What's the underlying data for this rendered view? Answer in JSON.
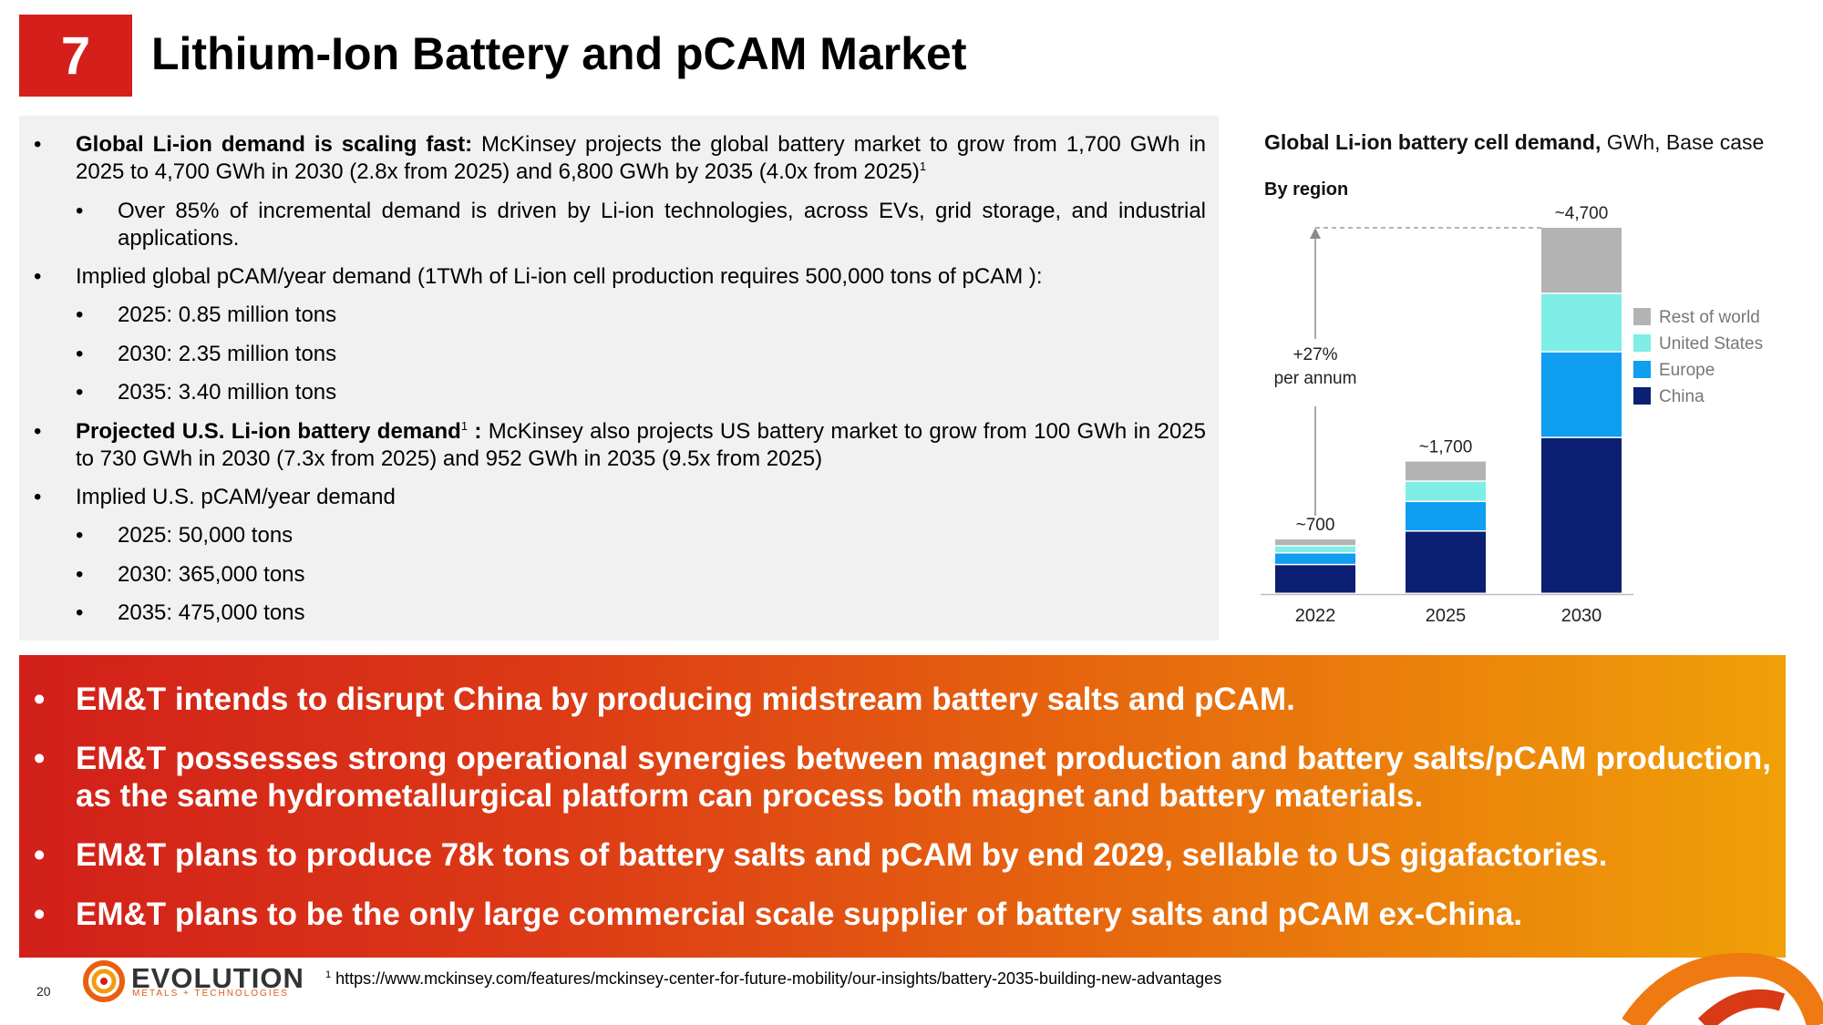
{
  "slide": {
    "number": "7",
    "title": "Lithium-Ion Battery and pCAM Market",
    "page_number": "20"
  },
  "bullets": [
    {
      "lead": "Global Li-ion demand is scaling fast:",
      "text": " McKinsey projects the global battery market to grow from 1,700 GWh in 2025 to 4,700 GWh in 2030 (2.8x from 2025) and 6,800 GWh by 2035 (4.0x from 2025)",
      "sup": "1"
    },
    {
      "text": "Over 85% of incremental demand is driven by Li-ion technologies, across EVs, grid storage, and industrial applications."
    },
    {
      "text": "Implied global pCAM/year demand (1TWh of Li-ion cell production requires 500,000 tons of pCAM ):"
    },
    {
      "text": "2025: 0.85 million tons"
    },
    {
      "text": "2030: 2.35 million tons"
    },
    {
      "text": "2035: 3.40 million tons"
    },
    {
      "lead": "Projected U.S. Li-ion battery demand",
      "sup": "1",
      "lead2": " :",
      "text": " McKinsey also projects US battery market to grow from 100 GWh in 2025 to 730 GWh in 2030 (7.3x from 2025) and 952 GWh in 2035 (9.5x from 2025)"
    },
    {
      "text": "Implied U.S. pCAM/year demand"
    },
    {
      "text": "2025: 50,000 tons"
    },
    {
      "text": "2030: 365,000 tons"
    },
    {
      "text": "2035: 475,000 tons"
    }
  ],
  "chart_data": {
    "type": "bar",
    "stacked": true,
    "title": "Global Li-ion battery cell demand,",
    "title_suffix": " GWh, Base case",
    "subtitle": "By region",
    "categories": [
      "2022",
      "2025",
      "2030"
    ],
    "totals_labels": [
      "~700",
      "~1,700",
      "~4,700"
    ],
    "totals": [
      700,
      1700,
      4700
    ],
    "series": [
      {
        "name": "China",
        "color": "#0b1f73",
        "values": [
          370,
          800,
          2000
        ]
      },
      {
        "name": "Europe",
        "color": "#0f9ef0",
        "values": [
          150,
          380,
          1100
        ]
      },
      {
        "name": "United States",
        "color": "#7eeee6",
        "values": [
          90,
          260,
          750
        ]
      },
      {
        "name": "Rest of world",
        "color": "#b3b3b3",
        "values": [
          90,
          260,
          850
        ]
      }
    ],
    "annotation": [
      "+27%",
      "per annum"
    ],
    "legend_position": "right"
  },
  "banner": [
    "EM&T intends to disrupt China by producing midstream battery salts and pCAM.",
    "EM&T possesses strong operational synergies between magnet production and battery salts/pCAM production, as the same hydrometallurgical platform can process both magnet and battery materials.",
    "EM&T plans to produce 78k tons of battery salts and pCAM by end 2029, sellable to US gigafactories.",
    "EM&T plans to be the only large commercial scale supplier of battery salts and pCAM ex-China."
  ],
  "footnote": {
    "sup": "1",
    "text": " https://www.mckinsey.com/features/mckinsey-center-for-future-mobility/our-insights/battery-2035-building-new-advantages"
  },
  "logo": {
    "name": "EVOLUTION",
    "tagline": "METALS + TECHNOLOGIES"
  },
  "colors": {
    "accent_red": "#d41f1a",
    "banner_end": "#f0a008"
  }
}
